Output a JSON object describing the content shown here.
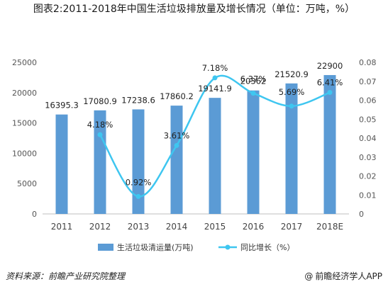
{
  "chart_data": {
    "type": "bar",
    "title": "图表2:2011-2018年中国生活垃圾排放量及增长情况（单位：万吨，%）",
    "categories": [
      "2011",
      "2012",
      "2013",
      "2014",
      "2015",
      "2016",
      "2017",
      "2018E"
    ],
    "series": [
      {
        "name": "生活垃圾清运量(万吨)",
        "type": "bar",
        "axis": "left",
        "color": "#5B9BD5",
        "values": [
          16395.3,
          17080.9,
          17238.6,
          17860.2,
          19141.9,
          20362,
          21520.9,
          22900
        ],
        "labels": [
          "16395.3",
          "17080.9",
          "17238.6",
          "17860.2",
          "19141.9",
          "20362",
          "21520.9",
          "22900"
        ]
      },
      {
        "name": "同比增长（%）",
        "type": "line",
        "smooth": true,
        "axis": "right",
        "color": "#3EC6F0",
        "values": [
          null,
          0.0418,
          0.0092,
          0.0361,
          0.0718,
          0.0637,
          0.0569,
          0.0641
        ],
        "labels": [
          "",
          "4.18%",
          "0.92%",
          "3.61%",
          "7.18%",
          "6.37%",
          "5.69%",
          "6.41%"
        ]
      }
    ],
    "y_left": {
      "min": 0,
      "max": 25000,
      "ticks": [
        "0",
        "5000",
        "10000",
        "15000",
        "20000",
        "25000"
      ]
    },
    "y_right": {
      "min": 0,
      "max": 0.08,
      "ticks": [
        "0",
        "0.01",
        "0.02",
        "0.03",
        "0.04",
        "0.05",
        "0.06",
        "0.07",
        "0.08"
      ]
    },
    "grid": false,
    "legend_position": "bottom"
  },
  "footer": {
    "source": "资料来源：前瞻产业研究院整理",
    "at": "@",
    "brand": "前瞻经济学人APP"
  }
}
